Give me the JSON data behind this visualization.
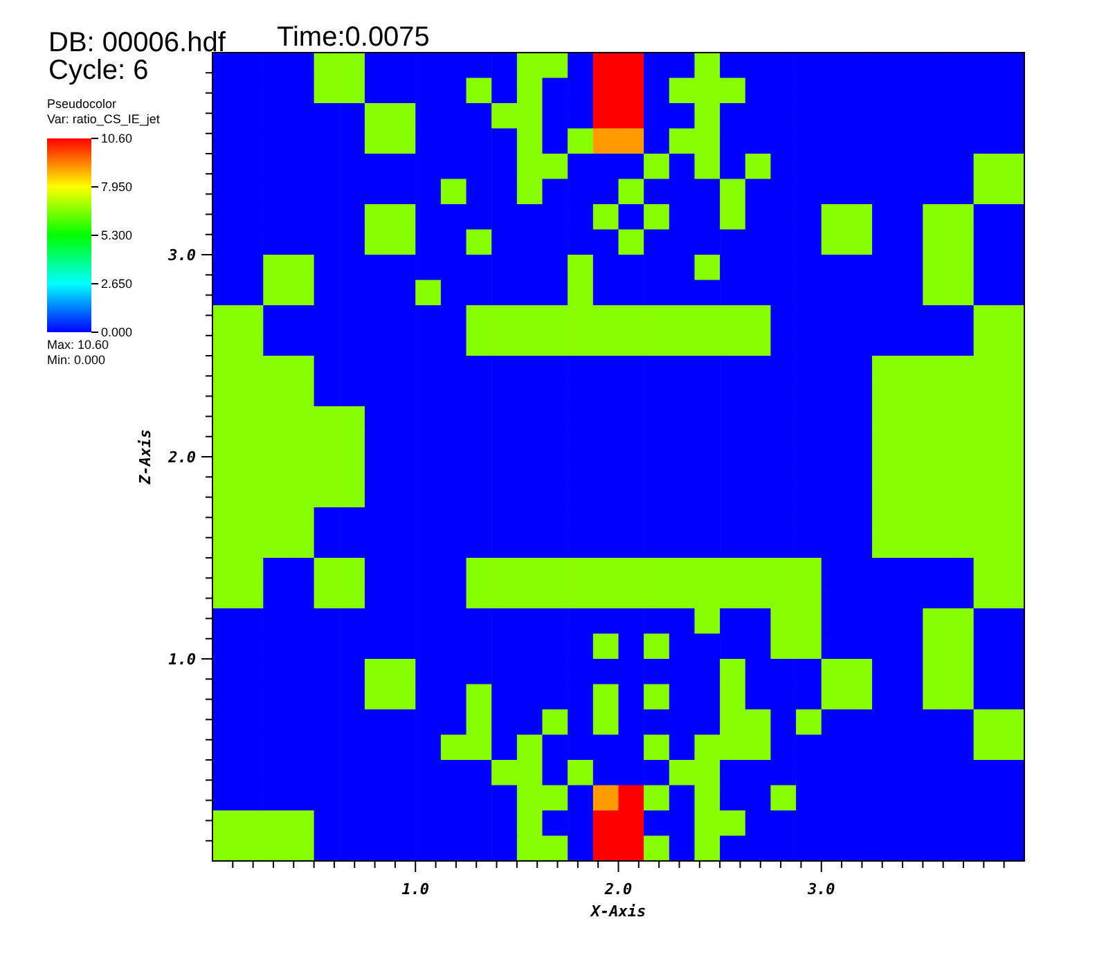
{
  "chart_data": {
    "type": "heatmap",
    "title": "DB: 00006.hdf",
    "legend_title": "Pseudocolor",
    "clabel": "Var: ratio_CS_IE_jet",
    "xlabel": "X-Axis",
    "ylabel": "Z-Axis",
    "annotations": [
      "Cycle: 6",
      "Time:0.0075",
      "Max: 10.60",
      "Min: 0.000"
    ],
    "xlim": [
      0,
      4
    ],
    "ylim": [
      0,
      4
    ],
    "xticks": [
      {
        "value": 0.1,
        "label": null
      },
      {
        "value": 0.2,
        "label": null
      },
      {
        "value": 0.3,
        "label": null
      },
      {
        "value": 0.4,
        "label": null
      },
      {
        "value": 0.5,
        "label": null
      },
      {
        "value": 0.6,
        "label": null
      },
      {
        "value": 0.7,
        "label": null
      },
      {
        "value": 0.8,
        "label": null
      },
      {
        "value": 0.9,
        "label": null
      },
      {
        "value": 1,
        "label": "1.0"
      },
      {
        "value": 1.1,
        "label": null
      },
      {
        "value": 1.2,
        "label": null
      },
      {
        "value": 1.3,
        "label": null
      },
      {
        "value": 1.4,
        "label": null
      },
      {
        "value": 1.5,
        "label": null
      },
      {
        "value": 1.6,
        "label": null
      },
      {
        "value": 1.7,
        "label": null
      },
      {
        "value": 1.8,
        "label": null
      },
      {
        "value": 1.9,
        "label": null
      },
      {
        "value": 2,
        "label": "2.0"
      },
      {
        "value": 2.1,
        "label": null
      },
      {
        "value": 2.2,
        "label": null
      },
      {
        "value": 2.3,
        "label": null
      },
      {
        "value": 2.4,
        "label": null
      },
      {
        "value": 2.5,
        "label": null
      },
      {
        "value": 2.6,
        "label": null
      },
      {
        "value": 2.7,
        "label": null
      },
      {
        "value": 2.8,
        "label": null
      },
      {
        "value": 2.9,
        "label": null
      },
      {
        "value": 3,
        "label": "3.0"
      },
      {
        "value": 3.1,
        "label": null
      },
      {
        "value": 3.2,
        "label": null
      },
      {
        "value": 3.3,
        "label": null
      },
      {
        "value": 3.4,
        "label": null
      },
      {
        "value": 3.5,
        "label": null
      },
      {
        "value": 3.6,
        "label": null
      },
      {
        "value": 3.7,
        "label": null
      },
      {
        "value": 3.8,
        "label": null
      },
      {
        "value": 3.9,
        "label": null
      }
    ],
    "yticks": [
      {
        "value": 0.1,
        "label": null
      },
      {
        "value": 0.2,
        "label": null
      },
      {
        "value": 0.3,
        "label": null
      },
      {
        "value": 0.4,
        "label": null
      },
      {
        "value": 0.5,
        "label": null
      },
      {
        "value": 0.6,
        "label": null
      },
      {
        "value": 0.7,
        "label": null
      },
      {
        "value": 0.8,
        "label": null
      },
      {
        "value": 0.9,
        "label": null
      },
      {
        "value": 1,
        "label": "1.0"
      },
      {
        "value": 1.1,
        "label": null
      },
      {
        "value": 1.2,
        "label": null
      },
      {
        "value": 1.3,
        "label": null
      },
      {
        "value": 1.4,
        "label": null
      },
      {
        "value": 1.5,
        "label": null
      },
      {
        "value": 1.6,
        "label": null
      },
      {
        "value": 1.7,
        "label": null
      },
      {
        "value": 1.8,
        "label": null
      },
      {
        "value": 1.9,
        "label": null
      },
      {
        "value": 2,
        "label": "2.0"
      },
      {
        "value": 2.1,
        "label": null
      },
      {
        "value": 2.2,
        "label": null
      },
      {
        "value": 2.3,
        "label": null
      },
      {
        "value": 2.4,
        "label": null
      },
      {
        "value": 2.5,
        "label": null
      },
      {
        "value": 2.6,
        "label": null
      },
      {
        "value": 2.7,
        "label": null
      },
      {
        "value": 2.8,
        "label": null
      },
      {
        "value": 2.9,
        "label": null
      },
      {
        "value": 3,
        "label": "3.0"
      },
      {
        "value": 3.1,
        "label": null
      },
      {
        "value": 3.2,
        "label": null
      },
      {
        "value": 3.3,
        "label": null
      },
      {
        "value": 3.4,
        "label": null
      },
      {
        "value": 3.5,
        "label": null
      },
      {
        "value": 3.6,
        "label": null
      },
      {
        "value": 3.7,
        "label": null
      },
      {
        "value": 3.8,
        "label": null
      },
      {
        "value": 3.9,
        "label": null
      }
    ],
    "clim": [
      0,
      10.6
    ],
    "cticks": [
      {
        "value": 0,
        "label": "0.000"
      },
      {
        "value": 2.65,
        "label": "2.650"
      },
      {
        "value": 5.3,
        "label": "5.300"
      },
      {
        "value": 7.95,
        "label": "7.950"
      },
      {
        "value": 10.6,
        "label": "10.60"
      }
    ],
    "cells": [
      [
        0,
        0,
        0,
        0,
        6.7,
        6.7,
        0,
        0,
        0,
        0,
        0,
        0,
        6.7,
        6.7,
        0,
        10.6,
        10.6,
        0,
        0,
        6.7,
        0,
        0,
        0,
        0,
        0,
        0,
        0,
        0,
        0,
        0,
        0,
        0
      ],
      [
        0,
        0,
        0,
        0,
        6.7,
        6.7,
        0,
        0,
        0,
        0,
        6.7,
        0,
        6.7,
        0,
        0,
        10.6,
        10.6,
        0,
        6.7,
        6.7,
        6.7,
        0,
        0,
        0,
        0,
        0,
        0,
        0,
        0,
        0,
        0,
        0
      ],
      [
        0,
        0,
        0,
        0,
        0,
        0,
        6.7,
        6.7,
        0,
        0,
        0,
        6.7,
        6.7,
        0,
        0,
        10.6,
        10.6,
        0,
        0,
        6.7,
        0,
        0,
        0,
        0,
        0,
        0,
        0,
        0,
        0,
        0,
        0,
        0
      ],
      [
        0,
        0,
        0,
        0,
        0,
        0,
        6.7,
        6.7,
        0,
        0,
        0,
        0,
        6.7,
        0,
        6.7,
        9,
        9,
        0,
        6.7,
        6.7,
        0,
        0,
        0,
        0,
        0,
        0,
        0,
        0,
        0,
        0,
        0,
        0
      ],
      [
        0,
        0,
        0,
        0,
        0,
        0,
        0,
        0,
        0,
        0,
        0,
        0,
        6.7,
        6.7,
        0,
        0,
        0,
        6.7,
        0,
        6.7,
        0,
        6.7,
        0,
        0,
        0,
        0,
        0,
        0,
        0,
        0,
        6.7,
        6.7
      ],
      [
        0,
        0,
        0,
        0,
        0,
        0,
        0,
        0,
        0,
        6.7,
        0,
        0,
        6.7,
        0,
        0,
        0,
        6.7,
        0,
        0,
        0,
        6.7,
        0,
        0,
        0,
        0,
        0,
        0,
        0,
        0,
        0,
        6.7,
        6.7
      ],
      [
        0,
        0,
        0,
        0,
        0,
        0,
        6.7,
        6.7,
        0,
        0,
        0,
        0,
        0,
        0,
        0,
        6.7,
        0,
        6.7,
        0,
        0,
        6.7,
        0,
        0,
        0,
        6.7,
        6.7,
        0,
        0,
        6.7,
        6.7,
        0,
        0
      ],
      [
        0,
        0,
        0,
        0,
        0,
        0,
        6.7,
        6.7,
        0,
        0,
        6.7,
        0,
        0,
        0,
        0,
        0,
        6.7,
        0,
        0,
        0,
        0,
        0,
        0,
        0,
        6.7,
        6.7,
        0,
        0,
        6.7,
        6.7,
        0,
        0
      ],
      [
        0,
        0,
        6.7,
        6.7,
        0,
        0,
        0,
        0,
        0,
        0,
        0,
        0,
        0,
        0,
        6.7,
        0,
        0,
        0,
        0,
        6.7,
        0,
        0,
        0,
        0,
        0,
        0,
        0,
        0,
        6.7,
        6.7,
        0,
        0
      ],
      [
        0,
        0,
        6.7,
        6.7,
        0,
        0,
        0,
        0,
        6.7,
        0,
        0,
        0,
        0,
        0,
        6.7,
        0,
        0,
        0,
        0,
        0,
        0,
        0,
        0,
        0,
        0,
        0,
        0,
        0,
        6.7,
        6.7,
        0,
        0
      ],
      [
        6.7,
        6.7,
        0,
        0,
        0,
        0,
        0,
        0,
        0,
        0,
        6.7,
        6.7,
        6.7,
        6.7,
        6.7,
        6.7,
        6.7,
        6.7,
        6.7,
        6.7,
        6.7,
        6.7,
        0,
        0,
        0,
        0,
        0,
        0,
        0,
        0,
        6.7,
        6.7
      ],
      [
        6.7,
        6.7,
        0,
        0,
        0,
        0,
        0,
        0,
        0,
        0,
        6.7,
        6.7,
        6.7,
        6.7,
        6.7,
        6.7,
        6.7,
        6.7,
        6.7,
        6.7,
        6.7,
        6.7,
        0,
        0,
        0,
        0,
        0,
        0,
        0,
        0,
        6.7,
        6.7
      ],
      [
        6.7,
        6.7,
        6.7,
        6.7,
        0,
        0,
        0,
        0,
        0,
        0,
        0,
        0,
        0,
        0,
        0,
        0,
        0,
        0,
        0,
        0,
        0,
        0,
        0,
        0,
        0,
        0,
        6.7,
        6.7,
        6.7,
        6.7,
        6.7,
        6.7
      ],
      [
        6.7,
        6.7,
        6.7,
        6.7,
        0,
        0,
        0,
        0,
        0,
        0,
        0,
        0,
        0,
        0,
        0,
        0,
        0,
        0,
        0,
        0,
        0,
        0,
        0,
        0,
        0,
        0,
        6.7,
        6.7,
        6.7,
        6.7,
        6.7,
        6.7
      ],
      [
        6.7,
        6.7,
        6.7,
        6.7,
        6.7,
        6.7,
        0,
        0,
        0,
        0,
        0,
        0,
        0,
        0,
        0,
        0,
        0,
        0,
        0,
        0,
        0,
        0,
        0,
        0,
        0,
        0,
        6.7,
        6.7,
        6.7,
        6.7,
        6.7,
        6.7
      ],
      [
        6.7,
        6.7,
        6.7,
        6.7,
        6.7,
        6.7,
        0,
        0,
        0,
        0,
        0,
        0,
        0,
        0,
        0,
        0,
        0,
        0,
        0,
        0,
        0,
        0,
        0,
        0,
        0,
        0,
        6.7,
        6.7,
        6.7,
        6.7,
        6.7,
        6.7
      ],
      [
        6.7,
        6.7,
        6.7,
        6.7,
        6.7,
        6.7,
        0,
        0,
        0,
        0,
        0,
        0,
        0,
        0,
        0,
        0,
        0,
        0,
        0,
        0,
        0,
        0,
        0,
        0,
        0,
        0,
        6.7,
        6.7,
        6.7,
        6.7,
        6.7,
        6.7
      ],
      [
        6.7,
        6.7,
        6.7,
        6.7,
        6.7,
        6.7,
        0,
        0,
        0,
        0,
        0,
        0,
        0,
        0,
        0,
        0,
        0,
        0,
        0,
        0,
        0,
        0,
        0,
        0,
        0,
        0,
        6.7,
        6.7,
        6.7,
        6.7,
        6.7,
        6.7
      ],
      [
        6.7,
        6.7,
        6.7,
        6.7,
        0,
        0,
        0,
        0,
        0,
        0,
        0,
        0,
        0,
        0,
        0,
        0,
        0,
        0,
        0,
        0,
        0,
        0,
        0,
        0,
        0,
        0,
        6.7,
        6.7,
        6.7,
        6.7,
        6.7,
        6.7
      ],
      [
        6.7,
        6.7,
        6.7,
        6.7,
        0,
        0,
        0,
        0,
        0,
        0,
        0,
        0,
        0,
        0,
        0,
        0,
        0,
        0,
        0,
        0,
        0,
        0,
        0,
        0,
        0,
        0,
        6.7,
        6.7,
        6.7,
        6.7,
        6.7,
        6.7
      ],
      [
        6.7,
        6.7,
        0,
        0,
        6.7,
        6.7,
        0,
        0,
        0,
        0,
        6.7,
        6.7,
        6.7,
        6.7,
        6.7,
        6.7,
        6.7,
        6.7,
        6.7,
        6.7,
        6.7,
        6.7,
        6.7,
        6.7,
        0,
        0,
        0,
        0,
        0,
        0,
        6.7,
        6.7
      ],
      [
        6.7,
        6.7,
        0,
        0,
        6.7,
        6.7,
        0,
        0,
        0,
        0,
        6.7,
        6.7,
        6.7,
        6.7,
        6.7,
        6.7,
        6.7,
        6.7,
        6.7,
        6.7,
        6.7,
        6.7,
        6.7,
        6.7,
        0,
        0,
        0,
        0,
        0,
        0,
        6.7,
        6.7
      ],
      [
        0,
        0,
        0,
        0,
        0,
        0,
        0,
        0,
        0,
        0,
        0,
        0,
        0,
        0,
        0,
        0,
        0,
        0,
        0,
        6.7,
        0,
        0,
        6.7,
        6.7,
        0,
        0,
        0,
        0,
        6.7,
        6.7,
        0,
        0
      ],
      [
        0,
        0,
        0,
        0,
        0,
        0,
        0,
        0,
        0,
        0,
        0,
        0,
        0,
        0,
        0,
        6.7,
        0,
        6.7,
        0,
        0,
        0,
        0,
        6.7,
        6.7,
        0,
        0,
        0,
        0,
        6.7,
        6.7,
        0,
        0
      ],
      [
        0,
        0,
        0,
        0,
        0,
        0,
        6.7,
        6.7,
        0,
        0,
        0,
        0,
        0,
        0,
        0,
        0,
        0,
        0,
        0,
        0,
        6.7,
        0,
        0,
        0,
        6.7,
        6.7,
        0,
        0,
        6.7,
        6.7,
        0,
        0
      ],
      [
        0,
        0,
        0,
        0,
        0,
        0,
        6.7,
        6.7,
        0,
        0,
        6.7,
        0,
        0,
        0,
        0,
        6.7,
        0,
        6.7,
        0,
        0,
        6.7,
        0,
        0,
        0,
        6.7,
        6.7,
        0,
        0,
        6.7,
        6.7,
        0,
        0
      ],
      [
        0,
        0,
        0,
        0,
        0,
        0,
        0,
        0,
        0,
        0,
        6.7,
        0,
        0,
        6.7,
        0,
        6.7,
        0,
        0,
        0,
        0,
        6.7,
        6.7,
        0,
        6.7,
        0,
        0,
        0,
        0,
        0,
        0,
        6.7,
        6.7
      ],
      [
        0,
        0,
        0,
        0,
        0,
        0,
        0,
        0,
        0,
        6.7,
        6.7,
        0,
        6.7,
        0,
        0,
        0,
        0,
        6.7,
        0,
        6.7,
        6.7,
        6.7,
        0,
        0,
        0,
        0,
        0,
        0,
        0,
        0,
        6.7,
        6.7
      ],
      [
        0,
        0,
        0,
        0,
        0,
        0,
        0,
        0,
        0,
        0,
        0,
        6.7,
        6.7,
        0,
        6.7,
        0,
        0,
        0,
        6.7,
        6.7,
        0,
        0,
        0,
        0,
        0,
        0,
        0,
        0,
        0,
        0,
        0,
        0
      ],
      [
        0,
        0,
        0,
        0,
        0,
        0,
        0,
        0,
        0,
        0,
        0,
        0,
        6.7,
        6.7,
        0,
        9,
        10.6,
        6.7,
        0,
        6.7,
        0,
        0,
        6.7,
        0,
        0,
        0,
        0,
        0,
        0,
        0,
        0,
        0
      ],
      [
        6.7,
        6.7,
        6.7,
        6.7,
        0,
        0,
        0,
        0,
        0,
        0,
        0,
        0,
        6.7,
        0,
        0,
        10.6,
        10.6,
        0,
        0,
        6.7,
        6.7,
        0,
        0,
        0,
        0,
        0,
        0,
        0,
        0,
        0,
        0,
        0
      ],
      [
        6.7,
        6.7,
        6.7,
        6.7,
        0,
        0,
        0,
        0,
        0,
        0,
        0,
        0,
        6.7,
        6.7,
        0,
        10.6,
        10.6,
        6.7,
        0,
        6.7,
        0,
        0,
        0,
        0,
        0,
        0,
        0,
        0,
        0,
        0,
        0,
        0
      ]
    ]
  }
}
